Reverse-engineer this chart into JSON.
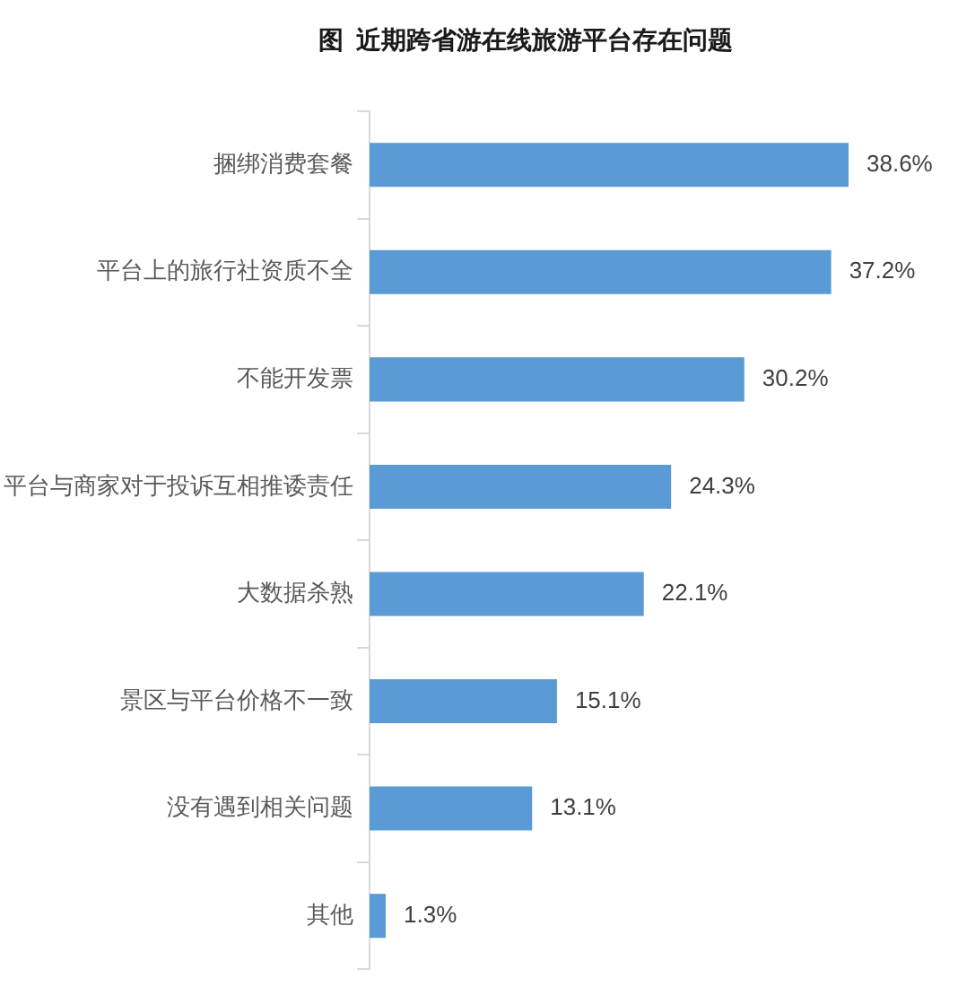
{
  "chart_data": {
    "type": "bar",
    "orientation": "horizontal",
    "title": "图  近期跨省游在线旅游平台存在问题",
    "categories": [
      "捆绑消费套餐",
      "平台上的旅行社资质不全",
      "不能开发票",
      "平台与商家对于投诉互相推诿责任",
      "大数据杀熟",
      "景区与平台价格不一致",
      "没有遇到相关问题",
      "其他"
    ],
    "values": [
      38.6,
      37.2,
      30.2,
      24.3,
      22.1,
      15.1,
      13.1,
      1.3
    ],
    "color": "#5b9bd5",
    "value_labels": [
      "38.6%",
      "37.2%",
      "30.2%",
      "24.3%",
      "22.1%",
      "15.1%",
      "13.1%",
      "1.3%"
    ]
  }
}
